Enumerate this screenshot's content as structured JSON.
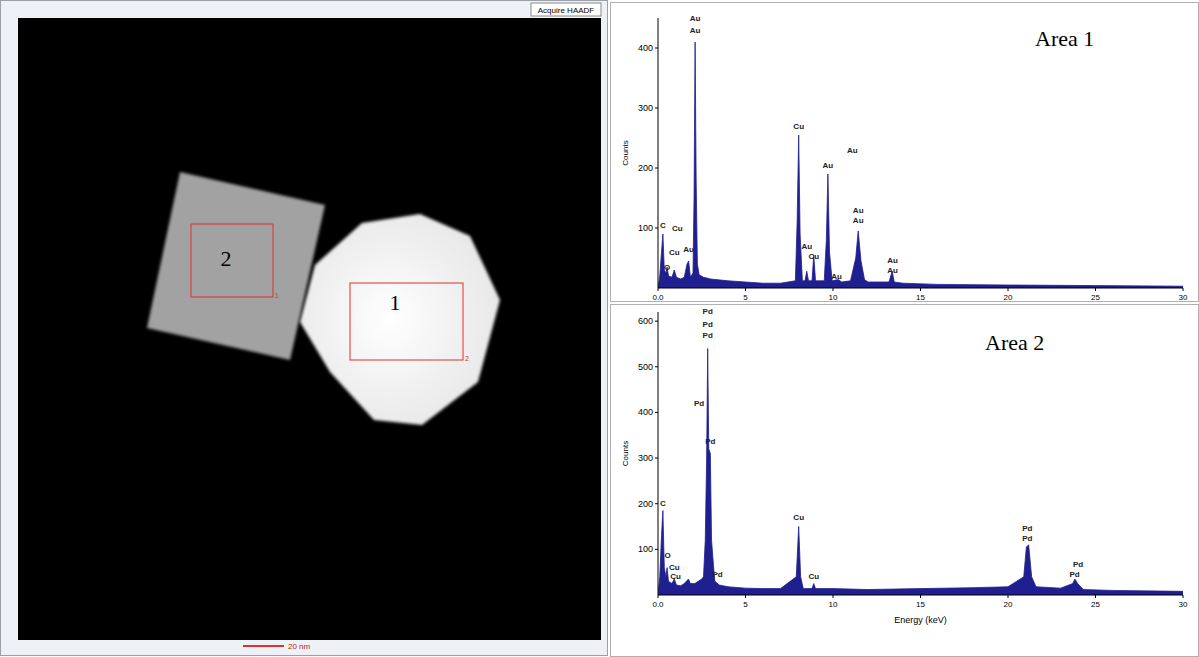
{
  "image": {
    "button": "Acquire HAADF",
    "scale_bar": "20 nm",
    "regions": [
      {
        "label": "2",
        "tag": "1"
      },
      {
        "label": "1",
        "tag": "2"
      }
    ]
  },
  "chart_data": [
    {
      "type": "area",
      "title": "Area 1",
      "color": "#1f1f8f",
      "y_label": "Counts",
      "xlim": [
        0,
        30
      ],
      "ylim": [
        0,
        450
      ],
      "xticks": [
        {
          "value": 0,
          "label": "0.0"
        },
        5,
        10,
        15,
        20,
        25,
        30
      ],
      "yticks": [
        100,
        200,
        300,
        400
      ],
      "grid": false,
      "x": [
        0,
        0.1,
        0.2,
        0.28,
        0.36,
        0.45,
        0.52,
        0.6,
        0.8,
        0.93,
        1.05,
        1.3,
        1.5,
        1.66,
        1.75,
        1.85,
        2.0,
        2.06,
        2.12,
        2.18,
        2.25,
        2.35,
        2.6,
        3,
        4,
        5,
        6,
        7,
        7.85,
        7.95,
        8.04,
        8.12,
        8.25,
        8.4,
        8.5,
        8.6,
        8.8,
        8.9,
        9.0,
        9.5,
        9.62,
        9.71,
        9.8,
        9.95,
        10.3,
        10.5,
        11.0,
        11.3,
        11.44,
        11.6,
        11.8,
        12.0,
        13.2,
        13.38,
        13.5,
        14,
        16,
        20,
        25,
        30
      ],
      "values": [
        0,
        20,
        60,
        90,
        30,
        25,
        35,
        20,
        18,
        30,
        18,
        15,
        18,
        40,
        45,
        18,
        25,
        150,
        410,
        180,
        40,
        22,
        18,
        15,
        12,
        10,
        8,
        8,
        12,
        110,
        255,
        90,
        12,
        12,
        28,
        12,
        12,
        55,
        12,
        12,
        80,
        190,
        60,
        12,
        14,
        10,
        12,
        50,
        95,
        45,
        14,
        10,
        10,
        28,
        10,
        8,
        6,
        5,
        4,
        3
      ],
      "annotations": [
        {
          "text": "C",
          "x": 0.28,
          "y": 100
        },
        {
          "text": "Cu",
          "x": 1.1,
          "y": 95
        },
        {
          "text": "O",
          "x": 0.52,
          "y": 30
        },
        {
          "text": "Cu",
          "x": 0.93,
          "y": 55
        },
        {
          "text": "Au",
          "x": 1.75,
          "y": 60
        },
        {
          "text": "Au",
          "x": 2.12,
          "y": 445
        },
        {
          "text": "Au",
          "x": 2.12,
          "y": 425
        },
        {
          "text": "Cu",
          "x": 8.04,
          "y": 265
        },
        {
          "text": "Au",
          "x": 9.71,
          "y": 200
        },
        {
          "text": "Au",
          "x": 11.1,
          "y": 225
        },
        {
          "text": "Au",
          "x": 11.44,
          "y": 125
        },
        {
          "text": "Au",
          "x": 11.44,
          "y": 108
        },
        {
          "text": "Au",
          "x": 8.5,
          "y": 65
        },
        {
          "text": "Cu",
          "x": 8.9,
          "y": 48
        },
        {
          "text": "Au",
          "x": 10.2,
          "y": 15
        },
        {
          "text": "Au",
          "x": 13.4,
          "y": 42
        },
        {
          "text": "Au",
          "x": 13.4,
          "y": 25
        }
      ]
    },
    {
      "type": "area",
      "title": "Area 2",
      "color": "#1f1f8f",
      "y_label": "Counts",
      "x_label": "Energy (keV)",
      "xlim": [
        0,
        30
      ],
      "ylim": [
        0,
        620
      ],
      "xticks": [
        {
          "value": 0,
          "label": "0.0"
        },
        5,
        10,
        15,
        20,
        25,
        30
      ],
      "yticks": [
        100,
        200,
        300,
        400,
        500,
        600
      ],
      "grid": false,
      "x": [
        0,
        0.1,
        0.2,
        0.28,
        0.36,
        0.45,
        0.52,
        0.6,
        0.8,
        0.93,
        1.05,
        1.3,
        1.5,
        1.74,
        1.85,
        2.1,
        2.3,
        2.5,
        2.6,
        2.7,
        2.78,
        2.84,
        2.9,
        2.99,
        3.06,
        3.17,
        3.25,
        3.5,
        4,
        5,
        6,
        7,
        7.9,
        8.04,
        8.15,
        8.3,
        8.8,
        8.9,
        9.0,
        10,
        12,
        15,
        18,
        20,
        20.9,
        21.05,
        21.18,
        21.35,
        21.6,
        23,
        23.7,
        23.82,
        23.98,
        24.3,
        26,
        30
      ],
      "values": [
        0,
        40,
        130,
        185,
        60,
        40,
        60,
        30,
        25,
        35,
        22,
        20,
        25,
        35,
        25,
        25,
        30,
        35,
        40,
        120,
        300,
        540,
        320,
        310,
        120,
        65,
        30,
        22,
        18,
        15,
        14,
        14,
        40,
        150,
        40,
        14,
        14,
        25,
        14,
        14,
        12,
        14,
        16,
        18,
        40,
        105,
        110,
        40,
        18,
        15,
        25,
        35,
        25,
        12,
        10,
        8
      ],
      "annotations": [
        {
          "text": "C",
          "x": 0.28,
          "y": 195
        },
        {
          "text": "O",
          "x": 0.55,
          "y": 80
        },
        {
          "text": "Cu",
          "x": 0.93,
          "y": 55
        },
        {
          "text": "Cu",
          "x": 1.0,
          "y": 35
        },
        {
          "text": "Pd",
          "x": 2.84,
          "y": 615
        },
        {
          "text": "Pd",
          "x": 2.84,
          "y": 588
        },
        {
          "text": "Pd",
          "x": 2.84,
          "y": 563
        },
        {
          "text": "Pd",
          "x": 2.35,
          "y": 415
        },
        {
          "text": "Pd",
          "x": 2.99,
          "y": 330
        },
        {
          "text": "Pd",
          "x": 3.4,
          "y": 40
        },
        {
          "text": "Cu",
          "x": 8.04,
          "y": 165
        },
        {
          "text": "Cu",
          "x": 8.9,
          "y": 35
        },
        {
          "text": "Pd",
          "x": 21.1,
          "y": 140
        },
        {
          "text": "Pd",
          "x": 21.1,
          "y": 118
        },
        {
          "text": "Pd",
          "x": 24.0,
          "y": 62
        },
        {
          "text": "Pd",
          "x": 23.8,
          "y": 40
        }
      ]
    }
  ]
}
